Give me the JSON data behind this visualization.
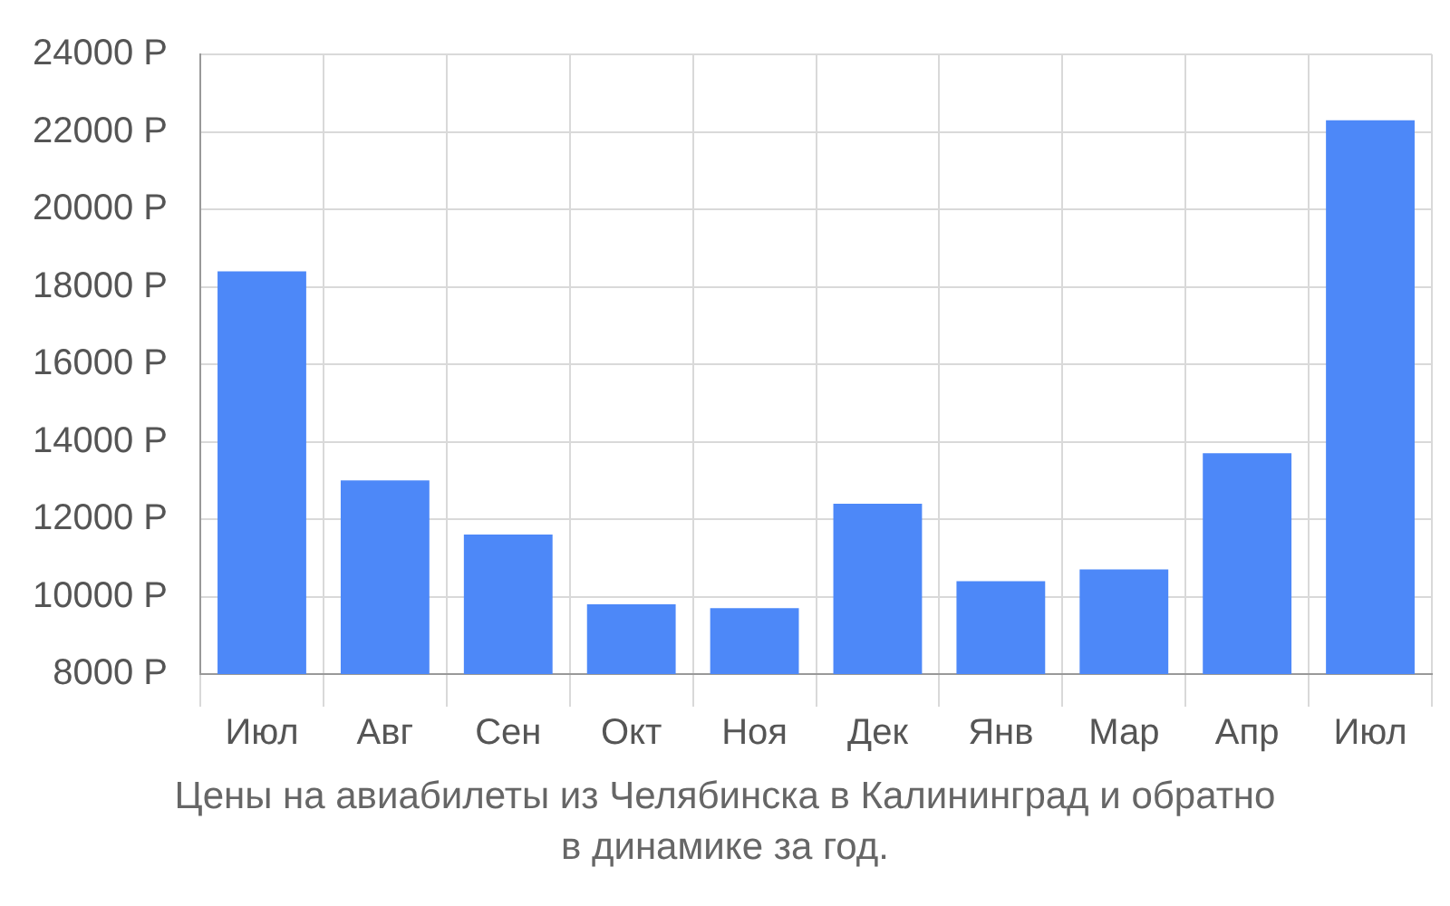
{
  "chart_data": {
    "type": "bar",
    "title": "Цены на авиабилеты из Челябинска в Калининград и обратно в динамике за год.",
    "categories": [
      "Июл",
      "Авг",
      "Сен",
      "Окт",
      "Ноя",
      "Дек",
      "Янв",
      "Мар",
      "Апр",
      "Июл"
    ],
    "values": [
      18400,
      13000,
      11600,
      9800,
      9700,
      12400,
      10400,
      10700,
      13700,
      22300
    ],
    "color": "#4d88f8",
    "ylim": [
      8000,
      24000
    ],
    "yticks": [
      {
        "value": 8000,
        "label": "8000 Р"
      },
      {
        "value": 10000,
        "label": "10000 Р"
      },
      {
        "value": 12000,
        "label": "12000 Р"
      },
      {
        "value": 14000,
        "label": "14000 Р"
      },
      {
        "value": 16000,
        "label": "16000 Р"
      },
      {
        "value": 18000,
        "label": "18000 Р"
      },
      {
        "value": 20000,
        "label": "20000 Р"
      },
      {
        "value": 22000,
        "label": "22000 Р"
      },
      {
        "value": 24000,
        "label": "24000 Р"
      }
    ],
    "grid": true
  }
}
